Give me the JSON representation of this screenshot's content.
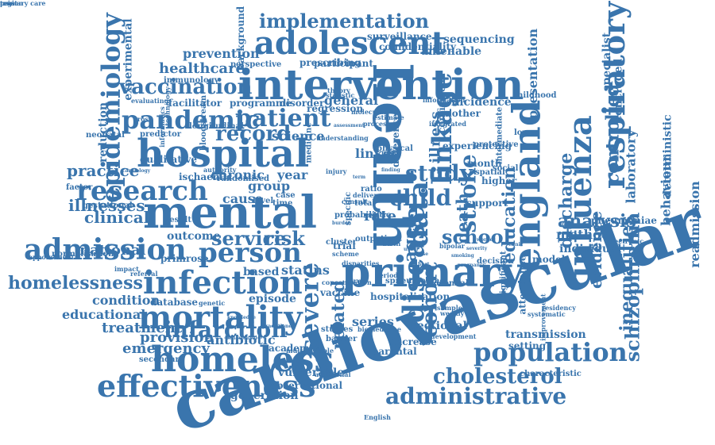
{
  "style": {
    "word_color": "#3a75ad",
    "background": "#ffffff"
  },
  "words": [
    {
      "text": "cardiovascular",
      "rot": "tilt-up"
    },
    {
      "text": "health",
      "rot": "cw"
    },
    {
      "text": "intervention",
      "rot": "none"
    },
    {
      "text": "hospital",
      "rot": "none"
    },
    {
      "text": "mental",
      "rot": "none"
    },
    {
      "text": "primary",
      "rot": "none"
    },
    {
      "text": "england",
      "rot": "ccw"
    },
    {
      "text": "respiratory",
      "rot": "ccw"
    },
    {
      "text": "adolescent",
      "rot": "none"
    },
    {
      "text": "homeless",
      "rot": "none"
    },
    {
      "text": "effectiveness",
      "rot": "none"
    },
    {
      "text": "influenza",
      "rot": "ccw"
    },
    {
      "text": "admission",
      "rot": "none"
    },
    {
      "text": "mortality",
      "rot": "none"
    },
    {
      "text": "infection",
      "rot": "none"
    },
    {
      "text": "population",
      "rot": "none"
    },
    {
      "text": "person",
      "rot": "none"
    },
    {
      "text": "pandemic",
      "rot": "none"
    },
    {
      "text": "patient",
      "rot": "none"
    },
    {
      "text": "research",
      "rot": "none"
    },
    {
      "text": "epidemiology",
      "rot": "ccw"
    },
    {
      "text": "disease",
      "rot": "ccw"
    },
    {
      "text": "administrative",
      "rot": "none"
    },
    {
      "text": "severe",
      "rot": "ccw"
    },
    {
      "text": "data",
      "rot": "ccw"
    },
    {
      "text": "linkage",
      "rot": "ccw"
    },
    {
      "text": "infarction",
      "rot": "none"
    },
    {
      "text": "vaccination",
      "rot": "none"
    },
    {
      "text": "implementation",
      "rot": "none"
    },
    {
      "text": "cholesterol",
      "rot": "none"
    },
    {
      "text": "homelessness",
      "rot": "none"
    },
    {
      "text": "service",
      "rot": "none"
    },
    {
      "text": "risk",
      "rot": "none"
    },
    {
      "text": "study",
      "rot": "none"
    },
    {
      "text": "school",
      "rot": "none"
    },
    {
      "text": "cohort",
      "rot": "ccw"
    },
    {
      "text": "record",
      "rot": "none"
    },
    {
      "text": "stroke",
      "rot": "ccw"
    },
    {
      "text": "child",
      "rot": "none"
    },
    {
      "text": "schizophrenia",
      "rot": "ccw"
    },
    {
      "text": "inequalities",
      "rot": "ccw"
    },
    {
      "text": "discharge",
      "rot": "ccw"
    },
    {
      "text": "controlled",
      "rot": "ccw"
    },
    {
      "text": "education",
      "rot": "ccw"
    },
    {
      "text": "analysis",
      "rot": "none"
    },
    {
      "text": "practice",
      "rot": "none"
    },
    {
      "text": "illnesses",
      "rot": "none"
    },
    {
      "text": "clinical",
      "rot": "none"
    },
    {
      "text": "national",
      "rot": "none"
    },
    {
      "text": "treatment",
      "rot": "none"
    },
    {
      "text": "emergency",
      "rot": "none"
    },
    {
      "text": "provision",
      "rot": "none"
    },
    {
      "text": "antibiotic",
      "rot": "none"
    },
    {
      "text": "condition",
      "rot": "none"
    },
    {
      "text": "educational",
      "rot": "none"
    },
    {
      "text": "generation",
      "rot": "none"
    },
    {
      "text": "vulnerable",
      "rot": "none"
    },
    {
      "text": "observational",
      "rot": "none"
    },
    {
      "text": "transmission",
      "rot": "none"
    },
    {
      "text": "evidence",
      "rot": "ccw"
    },
    {
      "text": "behaviour",
      "rot": "ccw"
    },
    {
      "text": "readmission",
      "rot": "ccw"
    },
    {
      "text": "method",
      "rot": "none"
    },
    {
      "text": "individual",
      "rot": "none"
    },
    {
      "text": "laboratory",
      "rot": "ccw"
    },
    {
      "text": "presentation",
      "rot": "ccw"
    },
    {
      "text": "amenable",
      "rot": "none"
    },
    {
      "text": "sequencing",
      "rot": "none"
    },
    {
      "text": "surveillance",
      "rot": "none"
    },
    {
      "text": "healthcare",
      "rot": "none"
    },
    {
      "text": "prevention",
      "rot": "none"
    },
    {
      "text": "background",
      "rot": "ccw"
    },
    {
      "text": "experimental",
      "rot": "ccw"
    },
    {
      "text": "reduction",
      "rot": "ccw"
    },
    {
      "text": "chronic",
      "rot": "none"
    },
    {
      "text": "group",
      "rot": "none"
    },
    {
      "text": "year",
      "rot": "none"
    },
    {
      "text": "cause",
      "rot": "none"
    },
    {
      "text": "statins",
      "rot": "none"
    },
    {
      "text": "based",
      "rot": "none"
    },
    {
      "text": "outcome",
      "rot": "none"
    },
    {
      "text": "primrose",
      "rot": "none"
    },
    {
      "text": "database",
      "rot": "none"
    },
    {
      "text": "episode",
      "rot": "none"
    },
    {
      "text": "related",
      "rot": "ccw"
    },
    {
      "text": "series",
      "rot": "none"
    },
    {
      "text": "aged",
      "rot": "ccw"
    },
    {
      "text": "death",
      "rot": "ccw"
    },
    {
      "text": "rate",
      "rot": "none"
    },
    {
      "text": "linked",
      "rot": "none"
    },
    {
      "text": "science",
      "rot": "none"
    },
    {
      "text": "general",
      "rot": "none"
    },
    {
      "text": "illness",
      "rot": "ccw"
    },
    {
      "text": "academic",
      "rot": "none"
    },
    {
      "text": "parental",
      "rot": "none"
    },
    {
      "text": "sectional",
      "rot": "none"
    },
    {
      "text": "deterministic",
      "rot": "ccw"
    },
    {
      "text": "concluded",
      "rot": "ccw"
    },
    {
      "text": "specialist",
      "rot": "ccw"
    },
    {
      "text": "incidence",
      "rot": "none"
    },
    {
      "text": "confidentiality",
      "rot": "none"
    },
    {
      "text": "participant",
      "rot": "none"
    },
    {
      "text": "prescribing",
      "rot": "none"
    },
    {
      "text": "perspective",
      "rot": "none"
    },
    {
      "text": "immunology",
      "rot": "none"
    },
    {
      "text": "programme",
      "rot": "none"
    },
    {
      "text": "facilitator",
      "rot": "none"
    },
    {
      "text": "disorder",
      "rot": "none"
    },
    {
      "text": "regression",
      "rot": "none"
    },
    {
      "text": "ischaemic",
      "rot": "none"
    },
    {
      "text": "predictor",
      "rot": "none"
    },
    {
      "text": "qualitative",
      "rot": "none"
    },
    {
      "text": "gestational",
      "rot": "none"
    },
    {
      "text": "normalisation",
      "rot": "none"
    },
    {
      "text": "appointment",
      "rot": "none"
    },
    {
      "text": "secondary",
      "rot": "none"
    },
    {
      "text": "spneumoniae",
      "rot": "none"
    },
    {
      "text": "hospitalisation",
      "rot": "none"
    },
    {
      "text": "vaccine",
      "rot": "none"
    },
    {
      "text": "studies",
      "rot": "none"
    },
    {
      "text": "barrier",
      "rot": "none"
    },
    {
      "text": "increase",
      "rot": "none"
    },
    {
      "text": "nosocomial",
      "rot": "none"
    },
    {
      "text": "attendance",
      "rot": "ccw"
    },
    {
      "text": "model",
      "rot": "none"
    },
    {
      "text": "decision",
      "rot": "none"
    },
    {
      "text": "significant",
      "rot": "ccw"
    },
    {
      "text": "setting",
      "rot": "none"
    },
    {
      "text": "characteristic",
      "rot": "none"
    },
    {
      "text": "pneumoniae",
      "rot": "none"
    },
    {
      "text": "experiencing",
      "rot": "none"
    },
    {
      "text": "intermediate",
      "rot": "ccw"
    },
    {
      "text": "month",
      "rot": "none"
    },
    {
      "text": "support",
      "rot": "none"
    },
    {
      "text": "higher",
      "rot": "none"
    },
    {
      "text": "lower",
      "rot": "none"
    },
    {
      "text": "mother",
      "rot": "none"
    },
    {
      "text": "confirmed",
      "rot": "ccw"
    },
    {
      "text": "difference",
      "rot": "ccw"
    },
    {
      "text": "physical",
      "rot": "none"
    },
    {
      "text": "medicine",
      "rot": "ccw"
    },
    {
      "text": "cluster",
      "rot": "none"
    },
    {
      "text": "factor",
      "rot": "none"
    },
    {
      "text": "neonatal",
      "rot": "none"
    },
    {
      "text": "cross",
      "rot": "none"
    },
    {
      "text": "informatics",
      "rot": "ccw"
    },
    {
      "text": "bloodstream",
      "rot": "ccw"
    },
    {
      "text": "longitudinal",
      "rot": "none"
    },
    {
      "text": "randomised",
      "rot": "none"
    },
    {
      "text": "probabilistic",
      "rot": "none"
    },
    {
      "text": "outpatient",
      "rot": "none"
    },
    {
      "text": "specific",
      "rot": "ccw"
    },
    {
      "text": "total",
      "rot": "none"
    },
    {
      "text": "ratio",
      "rot": "none"
    },
    {
      "text": "self",
      "rot": "none"
    },
    {
      "text": "trial",
      "rot": "none"
    },
    {
      "text": "level",
      "rot": "none"
    },
    {
      "text": "time",
      "rot": "none"
    },
    {
      "text": "case",
      "rot": "none"
    },
    {
      "text": "result",
      "rot": "none"
    },
    {
      "text": "impact",
      "rot": "none"
    },
    {
      "text": "referral",
      "rot": "none"
    },
    {
      "text": "genetic",
      "rot": "none"
    },
    {
      "text": "childhood",
      "rot": "none"
    },
    {
      "text": "protective",
      "rot": "none"
    },
    {
      "text": "evaluating",
      "rot": "none"
    },
    {
      "text": "technology",
      "rot": "ccw"
    },
    {
      "text": "estimate",
      "rot": "none"
    },
    {
      "text": "process",
      "rot": "none"
    },
    {
      "text": "theory",
      "rot": "none"
    },
    {
      "text": "statistic",
      "rot": "none"
    },
    {
      "text": "molecular",
      "rot": "none"
    },
    {
      "text": "information",
      "rot": "none"
    },
    {
      "text": "integrated",
      "rot": "none"
    },
    {
      "text": "authority",
      "rot": "none"
    },
    {
      "text": "cardiology",
      "rot": "none"
    },
    {
      "text": "disparities",
      "rot": "none"
    },
    {
      "text": "scheme",
      "rot": "none"
    },
    {
      "text": "concentration",
      "rot": "none"
    },
    {
      "text": "virus",
      "rot": "none"
    },
    {
      "text": "birth",
      "rot": "none"
    },
    {
      "text": "period",
      "rot": "none"
    },
    {
      "text": "spatial",
      "rot": "none"
    },
    {
      "text": "social",
      "rot": "none"
    },
    {
      "text": "sample",
      "rot": "none"
    },
    {
      "text": "weekly",
      "rot": "none"
    },
    {
      "text": "bipolar",
      "rot": "none"
    },
    {
      "text": "electronic",
      "rot": "none"
    },
    {
      "text": "systematic",
      "rot": "none"
    },
    {
      "text": "English",
      "rot": "none"
    },
    {
      "text": "biomedicine",
      "rot": "none"
    },
    {
      "text": "development",
      "rot": "none"
    },
    {
      "text": "improvement",
      "rot": "ccw"
    },
    {
      "text": "residency",
      "rot": "none"
    },
    {
      "text": "knowledge",
      "rot": "none"
    },
    {
      "text": "practitioner",
      "rot": "none"
    },
    {
      "text": "behavioural",
      "rot": "none"
    },
    {
      "text": "multivariable",
      "rot": "none"
    },
    {
      "text": "additional",
      "rot": "none"
    },
    {
      "text": "understanding",
      "rot": "none"
    },
    {
      "text": "assessment",
      "rot": "none"
    },
    {
      "text": "delivery",
      "rot": "none"
    },
    {
      "text": "consult",
      "rot": "none"
    },
    {
      "text": "burden",
      "rot": "none"
    },
    {
      "text": "need",
      "rot": "none"
    },
    {
      "text": "injury",
      "rot": "none"
    },
    {
      "text": "term",
      "rot": "none"
    },
    {
      "text": "setting",
      "rot": "none"
    },
    {
      "text": "finding",
      "rot": "none"
    },
    {
      "text": "usual",
      "rot": "none"
    },
    {
      "text": "nurse",
      "rot": "none"
    },
    {
      "text": "host",
      "rot": "none"
    },
    {
      "text": "viral",
      "rot": "none"
    },
    {
      "text": "smoking",
      "rot": "none"
    },
    {
      "text": "pregnancy",
      "rot": "none"
    },
    {
      "text": "severity",
      "rot": "none"
    },
    {
      "text": "worker",
      "rot": "none"
    },
    {
      "text": "clinic",
      "rot": "none"
    },
    {
      "text": "region",
      "rot": "none"
    },
    {
      "text": "trust",
      "rot": "none"
    },
    {
      "text": "primary care",
      "rot": "none"
    }
  ]
}
